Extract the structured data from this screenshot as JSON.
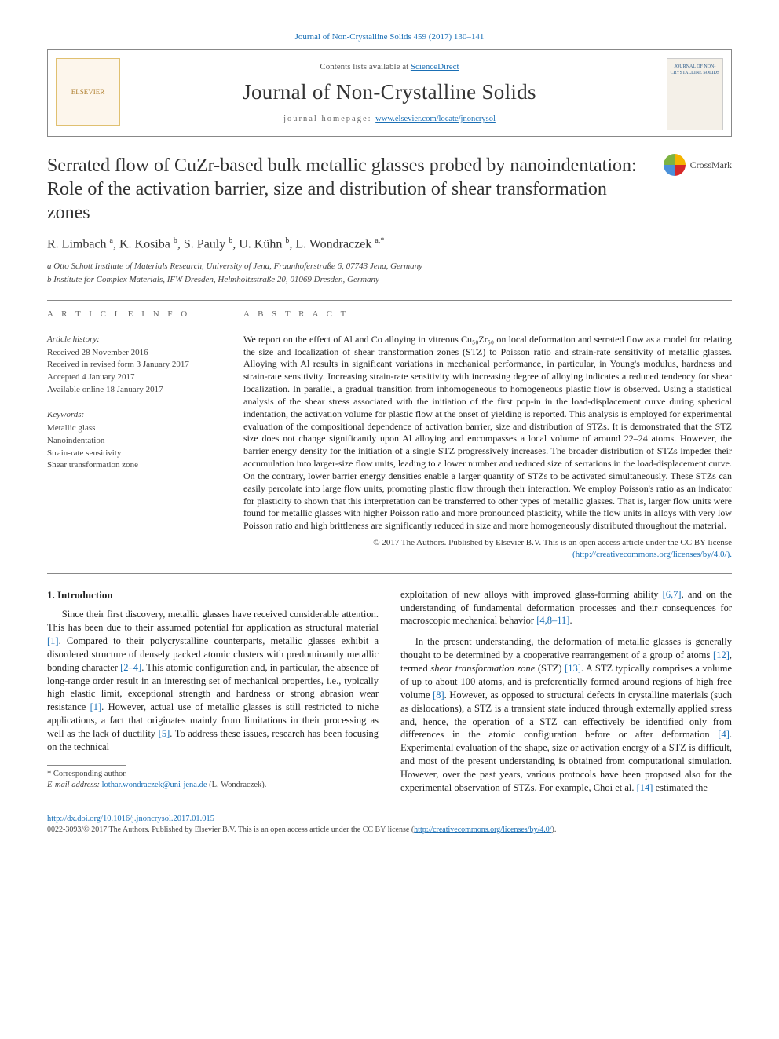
{
  "top_citation": "Journal of Non-Crystalline Solids 459 (2017) 130–141",
  "header": {
    "contents_prefix": "Contents lists available at ",
    "contents_link": "ScienceDirect",
    "journal_name": "Journal of Non-Crystalline Solids",
    "homepage_prefix": "journal homepage: ",
    "homepage_url": "www.elsevier.com/locate/jnoncrysol",
    "elsevier_label": "ELSEVIER",
    "cover_label": "JOURNAL OF NON-CRYSTALLINE SOLIDS"
  },
  "crossmark_label": "CrossMark",
  "title": "Serrated flow of CuZr-based bulk metallic glasses probed by nanoindentation: Role of the activation barrier, size and distribution of shear transformation zones",
  "authors_html": "R. Limbach <sup>a</sup>, K. Kosiba <sup>b</sup>, S. Pauly <sup>b</sup>, U. Kühn <sup>b</sup>, L. Wondraczek <sup>a,*</sup>",
  "affiliations": {
    "a": "a  Otto Schott Institute of Materials Research, University of Jena, Fraunhoferstraße 6, 07743 Jena, Germany",
    "b": "b  Institute for Complex Materials, IFW Dresden, Helmholtzstraße 20, 01069 Dresden, Germany"
  },
  "article_info": {
    "head": "A R T I C L E   I N F O",
    "history_label": "Article history:",
    "history": [
      "Received 28 November 2016",
      "Received in revised form 3 January 2017",
      "Accepted 4 January 2017",
      "Available online 18 January 2017"
    ],
    "keywords_label": "Keywords:",
    "keywords": [
      "Metallic glass",
      "Nanoindentation",
      "Strain-rate sensitivity",
      "Shear transformation zone"
    ]
  },
  "abstract": {
    "head": "A B S T R A C T",
    "text": "We report on the effect of Al and Co alloying in vitreous Cu₅₀Zr₅₀ on local deformation and serrated flow as a model for relating the size and localization of shear transformation zones (STZ) to Poisson ratio and strain-rate sensitivity of metallic glasses. Alloying with Al results in significant variations in mechanical performance, in particular, in Young's modulus, hardness and strain-rate sensitivity. Increasing strain-rate sensitivity with increasing degree of alloying indicates a reduced tendency for shear localization. In parallel, a gradual transition from inhomogeneous to homogeneous plastic flow is observed. Using a statistical analysis of the shear stress associated with the initiation of the first pop-in in the load-displacement curve during spherical indentation, the activation volume for plastic flow at the onset of yielding is reported. This analysis is employed for experimental evaluation of the compositional dependence of activation barrier, size and distribution of STZs. It is demonstrated that the STZ size does not change significantly upon Al alloying and encompasses a local volume of around 22–24 atoms. However, the barrier energy density for the initiation of a single STZ progressively increases. The broader distribution of STZs impedes their accumulation into larger-size flow units, leading to a lower number and reduced size of serrations in the load-displacement curve. On the contrary, lower barrier energy densities enable a larger quantity of STZs to be activated simultaneously. These STZs can easily percolate into large flow units, promoting plastic flow through their interaction. We employ Poisson's ratio as an indicator for plasticity to shown that this interpretation can be transferred to other types of metallic glasses. That is, larger flow units were found for metallic glasses with higher Poisson ratio and more pronounced plasticity, while the flow units in alloys with very low Poisson ratio and high brittleness are significantly reduced in size and more homogeneously distributed throughout the material.",
    "copyright": "© 2017 The Authors. Published by Elsevier B.V. This is an open access article under the CC BY license",
    "license_url": "(http://creativecommons.org/licenses/by/4.0/)."
  },
  "body": {
    "section_head": "1. Introduction",
    "col1_p1": "Since their first discovery, metallic glasses have received considerable attention. This has been due to their assumed potential for application as structural material [1]. Compared to their polycrystalline counterparts, metallic glasses exhibit a disordered structure of densely packed atomic clusters with predominantly metallic bonding character [2–4]. This atomic configuration and, in particular, the absence of long-range order result in an interesting set of mechanical properties, i.e., typically high elastic limit, exceptional strength and hardness or strong abrasion wear resistance [1]. However, actual use of metallic glasses is still restricted to niche applications, a fact that originates mainly from limitations in their processing as well as the lack of ductility [5]. To address these issues, research has been focusing on the technical",
    "col2_p1": "exploitation of new alloys with improved glass-forming ability [6,7], and on the understanding of fundamental deformation processes and their consequences for macroscopic mechanical behavior [4,8–11].",
    "col2_p2": "In the present understanding, the deformation of metallic glasses is generally thought to be determined by a cooperative rearrangement of a group of atoms [12], termed shear transformation zone (STZ) [13]. A STZ typically comprises a volume of up to about 100 atoms, and is preferentially formed around regions of high free volume [8]. However, as opposed to structural defects in crystalline materials (such as dislocations), a STZ is a transient state induced through externally applied stress and, hence, the operation of a STZ can effectively be identified only from differences in the atomic configuration before or after deformation [4]. Experimental evaluation of the shape, size or activation energy of a STZ is difficult, and most of the present understanding is obtained from computational simulation. However, over the past years, various protocols have been proposed also for the experimental observation of STZs. For example, Choi et al. [14] estimated the",
    "refs": {
      "r1": "[1]",
      "r24": "[2–4]",
      "r5": "[5]",
      "r67": "[6,7]",
      "r4811": "[4,8–11]",
      "r12": "[12]",
      "r13": "[13]",
      "r8": "[8]",
      "r4": "[4]",
      "r14": "[14]"
    }
  },
  "footnote": {
    "corr_label": "* Corresponding author.",
    "email_label": "E-mail address: ",
    "email": "lothar.wondraczek@uni-jena.de",
    "email_suffix": " (L. Wondraczek)."
  },
  "footer": {
    "doi": "http://dx.doi.org/10.1016/j.jnoncrysol.2017.01.015",
    "issn_line": "0022-3093/© 2017 The Authors. Published by Elsevier B.V. This is an open access article under the CC BY license (",
    "license_url": "http://creativecommons.org/licenses/by/4.0/",
    "issn_suffix": ")."
  },
  "colors": {
    "link": "#1a6fb5",
    "text": "#222222",
    "rule": "#888888"
  }
}
